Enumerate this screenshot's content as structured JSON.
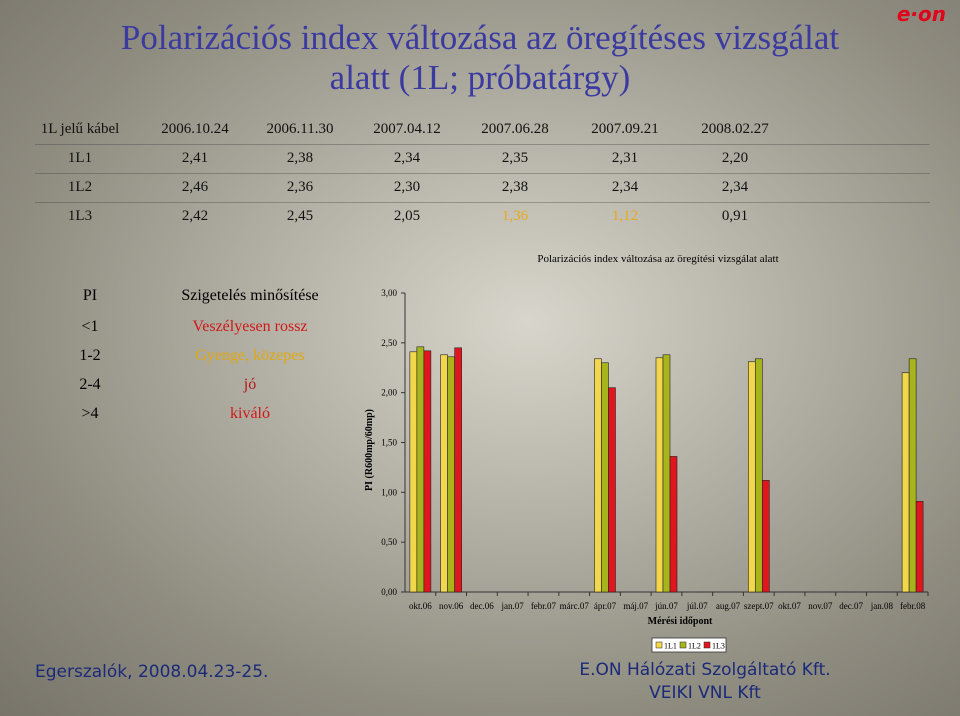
{
  "title": [
    "Polarizációs index változása az öregítéses vizsgálat",
    "alatt (1L; próbatárgy)"
  ],
  "logo": "e·on",
  "table": {
    "header": [
      "1L jelű kábel",
      "2006.10.24",
      "2006.11.30",
      "2007.04.12",
      "2007.06.28",
      "2007.09.21",
      "2008.02.27"
    ],
    "rows": [
      [
        "1L1",
        "2,41",
        "2,38",
        "2,34",
        "2,35",
        "2,31",
        "2,20"
      ],
      [
        "1L2",
        "2,46",
        "2,36",
        "2,30",
        "2,38",
        "2,34",
        "2,34"
      ],
      [
        "1L3",
        "2,42",
        "2,45",
        "2,05",
        "1,36",
        "1,12",
        "0,91"
      ]
    ]
  },
  "rating_table": {
    "header": [
      "PI",
      "Szigetelés minősítése"
    ],
    "rows": [
      [
        "<1",
        "Veszélyesen rossz"
      ],
      [
        "1-2",
        "Gyenge, közepes"
      ],
      [
        "2-4",
        "jó"
      ],
      [
        ">4",
        "kiváló"
      ]
    ]
  },
  "chart_data": {
    "type": "bar",
    "title": "Polarizációs index változása az öregítési vizsgálat alatt",
    "x_label": "Mérési időpont",
    "y_label": "PI (R600mp/60mp)",
    "categories": [
      "okt.06",
      "nov.06",
      "dec.06",
      "jan.07",
      "febr.07",
      "márc.07",
      "ápr.07",
      "máj.07",
      "jún.07",
      "júl.07",
      "aug.07",
      "szept.07",
      "okt.07",
      "nov.07",
      "dec.07",
      "jan.08",
      "febr.08"
    ],
    "series": [
      {
        "name": "1L1",
        "color": "#f2d64b",
        "values": [
          2.41,
          2.38,
          null,
          null,
          null,
          null,
          2.34,
          null,
          2.35,
          null,
          null,
          2.31,
          null,
          null,
          null,
          null,
          2.2
        ]
      },
      {
        "name": "1L2",
        "color": "#a8b41c",
        "values": [
          2.46,
          2.36,
          null,
          null,
          null,
          null,
          2.3,
          null,
          2.38,
          null,
          null,
          2.34,
          null,
          null,
          null,
          null,
          2.34
        ]
      },
      {
        "name": "1L3",
        "color": "#e0161e",
        "values": [
          2.42,
          2.45,
          null,
          null,
          null,
          null,
          2.05,
          null,
          1.36,
          null,
          null,
          1.12,
          null,
          null,
          null,
          null,
          0.91
        ]
      }
    ],
    "ylim": [
      0,
      3
    ],
    "yticks": [
      {
        "value": 0,
        "label": "0,00"
      },
      {
        "value": 0.5,
        "label": "0,50"
      },
      {
        "value": 1,
        "label": "1,00"
      },
      {
        "value": 1.5,
        "label": "1,50"
      },
      {
        "value": 2,
        "label": "2,00"
      },
      {
        "value": 2.5,
        "label": "2,50"
      },
      {
        "value": 3,
        "label": "3,00"
      }
    ],
    "grid": false,
    "legend": "bottom"
  },
  "footer": {
    "left": "Egerszalók, 2008.04.23-25.",
    "right": [
      "E.ON Hálózati Szolgáltató Kft.",
      "VEIKI VNL Kft"
    ]
  }
}
